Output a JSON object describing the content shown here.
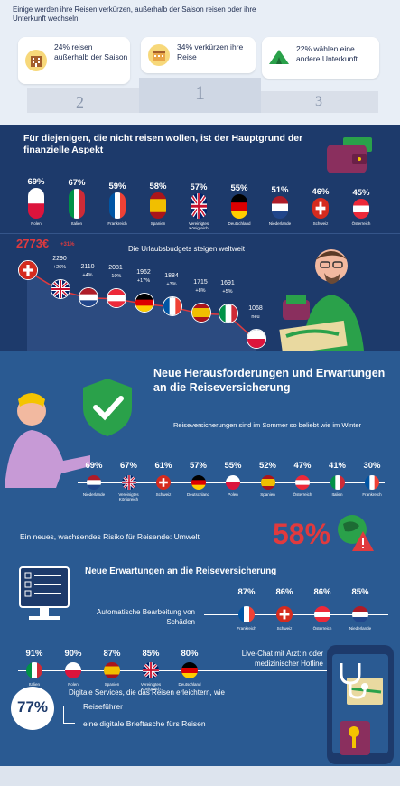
{
  "chart_data": [
    {
      "type": "bar",
      "title": "Einige werden ihre Reisen verkürzen, außerhalb der Saison reisen oder ihre Unterkunft wechseln.",
      "categories": [
        "reisen außerhalb der Saison",
        "verkürzen ihre Reise",
        "wählen eine andere Unterkunft"
      ],
      "values": [
        24,
        34,
        22
      ],
      "ranks": [
        "2",
        "1",
        "3"
      ],
      "texts": [
        "24% reisen außerhalb der Saison",
        "34% verkürzen ihre Reise",
        "22% wählen eine andere Unterkunft"
      ]
    },
    {
      "type": "bar",
      "title": "Für diejenigen, die nicht reisen wollen, ist der Hauptgrund der finanzielle Aspekt",
      "categories": [
        "Polen",
        "Italien",
        "Frankreich",
        "Spanien",
        "Vereinigtes Königreich",
        "Deutschland",
        "Niederlande",
        "Schweiz",
        "Österreich"
      ],
      "values": [
        69,
        67,
        59,
        58,
        57,
        55,
        51,
        46,
        45
      ],
      "labels": [
        "69%",
        "67%",
        "59%",
        "58%",
        "57%",
        "55%",
        "51%",
        "46%",
        "45%"
      ]
    },
    {
      "type": "line",
      "title": "Die Urlaubsbudgets steigen weltweit",
      "categories": [
        "Schweiz",
        "Vereinigtes Königreich",
        "Niederlande",
        "Österreich",
        "Deutschland",
        "Frankreich",
        "Spanien",
        "Italien",
        "Polen"
      ],
      "values": [
        2773,
        2290,
        2110,
        2081,
        1962,
        1884,
        1715,
        1691,
        1068
      ],
      "value_labels": [
        "2773€",
        "2290",
        "2110",
        "2081",
        "1962",
        "1884",
        "1715",
        "1691",
        "1068"
      ],
      "changes": [
        "+31%",
        "+26%",
        "+4%",
        "-10%",
        "+17%",
        "+3%",
        "+8%",
        "+5%",
        "neu"
      ]
    },
    {
      "type": "bar",
      "title": "Reiseversicherungen sind im Sommer so beliebt wie im Winter",
      "categories": [
        "Niederlande",
        "Vereinigtes Königreich",
        "Schweiz",
        "Deutschland",
        "Polen",
        "Spanien",
        "Österreich",
        "Italien",
        "Frankreich"
      ],
      "values": [
        69,
        67,
        61,
        57,
        55,
        52,
        47,
        41,
        30
      ],
      "labels": [
        "69%",
        "67%",
        "61%",
        "57%",
        "55%",
        "52%",
        "47%",
        "41%",
        "30%"
      ]
    },
    {
      "type": "bar",
      "title": "Automatische Bearbeitung von Schäden",
      "categories": [
        "Frankreich",
        "Schweiz",
        "Österreich",
        "Niederlande"
      ],
      "values": [
        87,
        86,
        86,
        85
      ],
      "labels": [
        "87%",
        "86%",
        "86%",
        "85%"
      ]
    },
    {
      "type": "bar",
      "title": "Live-Chat mit Ärzt:in oder medizinischer Hotline",
      "categories": [
        "Italien",
        "Polen",
        "Spanien",
        "Vereinigtes Königreich",
        "Deutschland"
      ],
      "values": [
        91,
        90,
        87,
        85,
        80
      ],
      "labels": [
        "91%",
        "90%",
        "87%",
        "85%",
        "80%"
      ]
    }
  ],
  "section1": {
    "title": "Einige werden ihre Reisen verkürzen, außerhalb der Saison reisen oder ihre Unterkunft wechseln."
  },
  "section3": {
    "heading": "Neue Herausforderungen und Erwartungen an die Reiseversicherung",
    "insurance_title": "Reiseversicherungen sind im Sommer so beliebt wie im Winter",
    "env_risk": "Ein neues, wachsendes Risiko für Reisende: Umwelt",
    "env_value": "58%",
    "expect_heading": "Neue Erwartungen an die Reiseversicherung",
    "auto_label": "Automatische Bearbeitung von Schäden",
    "chat_label": "Live-Chat mit Ärzt:in oder medizinischer Hotline",
    "digital_value": "77%",
    "digital_label": "Digitale Services, die das Reisen erleichtern, wie",
    "digital_items": [
      "Reiseführer",
      "eine digitale Brieftasche fürs Reisen"
    ]
  },
  "colors": {
    "navy": "#1d3a6b",
    "blue": "#2a5a92",
    "red": "#e03a3e",
    "green": "#2aa14a",
    "yellow": "#f4c400"
  },
  "icons": [
    "hotel-icon",
    "calendar-icon",
    "tent-icon",
    "wallet-icon",
    "shield-check-icon",
    "globe-icon",
    "warning-icon",
    "checklist-icon",
    "stethoscope-icon",
    "phone-icon",
    "map-icon"
  ]
}
